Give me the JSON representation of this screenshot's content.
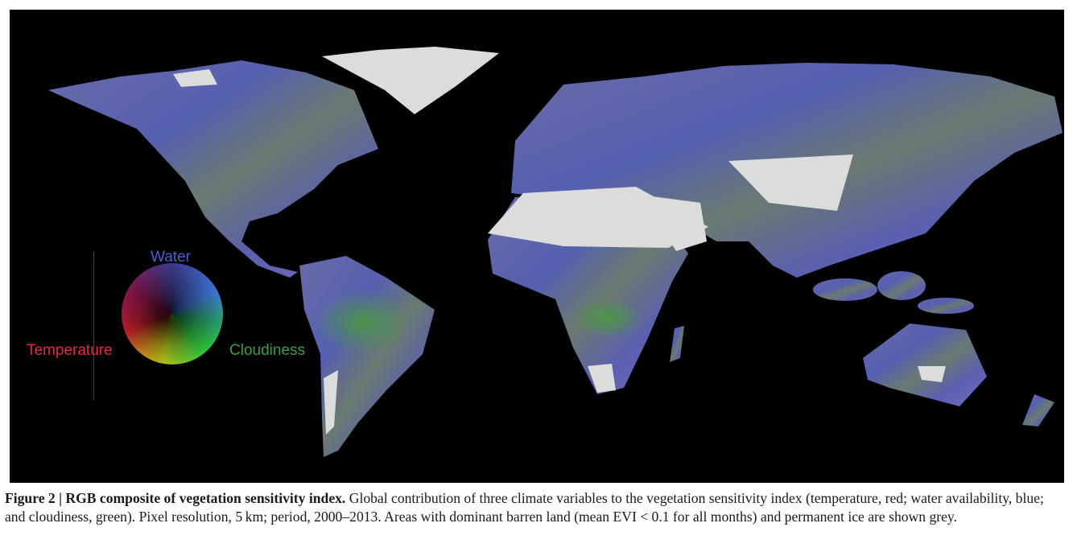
{
  "figure": {
    "legend": {
      "top": "Water",
      "left": "Temperature",
      "right": "Cloudiness"
    },
    "caption": {
      "title": "Figure 2 | RGB composite of vegetation sensitivity index.",
      "text": "Global contribution of three climate variables to the vegetation sensitivity index (temperature, red; water availability, blue; and cloudiness, green). Pixel resolution, 5 km; period, 2000–2013. Areas with dominant barren land (mean EVI < 0.1 for all months) and permanent ice are shown grey."
    }
  }
}
